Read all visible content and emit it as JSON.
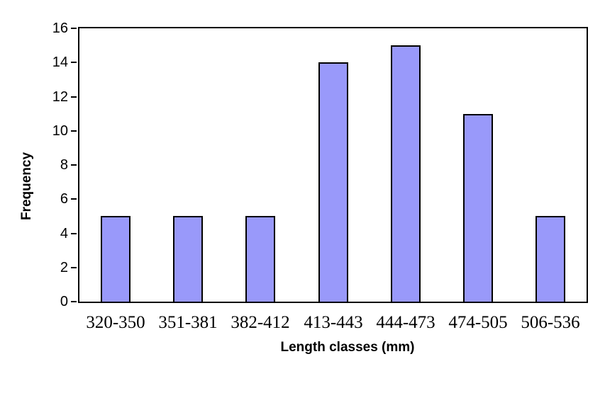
{
  "chart_data": {
    "type": "bar",
    "categories": [
      "320-350",
      "351-381",
      "382-412",
      "413-443",
      "444-473",
      "474-505",
      "506-536"
    ],
    "values": [
      5,
      5,
      5,
      14,
      15,
      11,
      5
    ],
    "title": "",
    "xlabel": "Length classes (mm)",
    "ylabel": "Frequency",
    "ylim": [
      0,
      16
    ],
    "ytick_step": 2,
    "ytick_labels": [
      "0",
      "2",
      "4",
      "6",
      "8",
      "10",
      "12",
      "14",
      "16"
    ],
    "bar_color": "#9999FA",
    "bar_border_color": "#000000",
    "axis_color": "#000000",
    "background_color": "#ffffff",
    "grid": false,
    "legend": "none",
    "plot_border": true
  }
}
